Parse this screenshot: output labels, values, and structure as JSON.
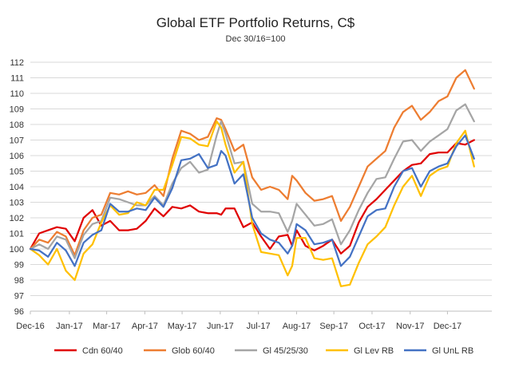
{
  "chart_data": {
    "type": "line",
    "title": "Global ETF Portfolio Returns, C$",
    "subtitle": "Dec 30/16=100",
    "xlabel": "",
    "ylabel": "",
    "ylim": [
      96,
      112
    ],
    "yticks": [
      96,
      97,
      98,
      99,
      100,
      101,
      102,
      103,
      104,
      105,
      106,
      107,
      108,
      109,
      110,
      111,
      112
    ],
    "xlim": [
      0,
      52
    ],
    "xticks": [
      {
        "label": "Dec-16",
        "x": 0
      },
      {
        "label": "Jan-17",
        "x": 4.4
      },
      {
        "label": "Mar-17",
        "x": 8.6
      },
      {
        "label": "Apr-17",
        "x": 12.9
      },
      {
        "label": "May-17",
        "x": 17.1
      },
      {
        "label": "Jun-17",
        "x": 21.4
      },
      {
        "label": "Jul-17",
        "x": 25.7
      },
      {
        "label": "Aug-17",
        "x": 30
      },
      {
        "label": "Sep-17",
        "x": 34.2
      },
      {
        "label": "Oct-17",
        "x": 38.5
      },
      {
        "label": "Nov-17",
        "x": 42.8
      },
      {
        "label": "Dec-17",
        "x": 47
      }
    ],
    "grid": true,
    "legend_position": "bottom",
    "series": [
      {
        "name": "Cdn 60/40",
        "color": "#e00000",
        "x": [
          0,
          1,
          2,
          3,
          4,
          5,
          6,
          7,
          8,
          9,
          10,
          11,
          12,
          13,
          14,
          15,
          16,
          17,
          18,
          19,
          20,
          21,
          21.5,
          22,
          23,
          24,
          25,
          26,
          27,
          28,
          29,
          29.5,
          30,
          31,
          32,
          33,
          34,
          35,
          36,
          37,
          38,
          39,
          40,
          41,
          42,
          43,
          44,
          45,
          46,
          47,
          48,
          49,
          50
        ],
        "values": [
          100,
          101,
          101.2,
          101.4,
          101.3,
          100.5,
          102,
          102.5,
          101.5,
          101.8,
          101.2,
          101.2,
          101.3,
          101.8,
          102.6,
          102.1,
          102.7,
          102.6,
          102.8,
          102.4,
          102.3,
          102.3,
          102.2,
          102.6,
          102.6,
          101.4,
          101.7,
          100.8,
          100,
          100.8,
          100.9,
          100.2,
          101.2,
          100.2,
          99.9,
          100.2,
          100.6,
          99.7,
          100.2,
          101.7,
          102.7,
          103.2,
          103.8,
          104.4,
          105,
          105.4,
          105.5,
          106.1,
          106.2,
          106.2,
          106.8,
          106.7,
          107
        ]
      },
      {
        "name": "Glob 60/40",
        "color": "#ed7d31",
        "x": [
          0,
          1,
          2,
          3,
          4,
          5,
          6,
          7,
          8,
          9,
          10,
          11,
          12,
          13,
          14,
          15,
          16,
          17,
          18,
          19,
          20,
          21,
          21.5,
          22,
          23,
          24,
          25,
          26,
          27,
          28,
          29,
          29.5,
          30,
          31,
          32,
          33,
          34,
          35,
          36,
          37,
          38,
          39,
          40,
          41,
          42,
          43,
          44,
          45,
          46,
          47,
          48,
          49,
          50
        ],
        "values": [
          100,
          100.6,
          100.4,
          101.1,
          100.8,
          99.6,
          101.2,
          102,
          102.2,
          103.6,
          103.5,
          103.7,
          103.5,
          103.6,
          104.1,
          103.4,
          105.8,
          107.6,
          107.4,
          107,
          107.2,
          108.4,
          108.3,
          107.7,
          106.3,
          106.7,
          104.6,
          103.8,
          104,
          103.8,
          103.2,
          104.7,
          104.4,
          103.6,
          103.1,
          103.2,
          103.4,
          101.8,
          102.7,
          104,
          105.3,
          105.8,
          106.3,
          107.8,
          108.8,
          109.2,
          108.3,
          108.8,
          109.5,
          109.8,
          111,
          111.5,
          110.3
        ]
      },
      {
        "name": "Gl 45/25/30",
        "color": "#a5a5a5",
        "x": [
          0,
          1,
          2,
          3,
          4,
          5,
          6,
          7,
          8,
          9,
          10,
          11,
          12,
          13,
          14,
          15,
          16,
          17,
          18,
          19,
          20,
          21,
          21.5,
          22,
          23,
          24,
          25,
          26,
          27,
          28,
          29,
          29.5,
          30,
          31,
          32,
          33,
          34,
          35,
          36,
          37,
          38,
          39,
          40,
          41,
          42,
          43,
          44,
          45,
          46,
          47,
          48,
          49,
          50
        ],
        "values": [
          100,
          100.3,
          100,
          100.8,
          100.6,
          99.4,
          100.9,
          101.6,
          101.8,
          103.3,
          103.2,
          103,
          102.8,
          102.8,
          103.4,
          102.8,
          104.2,
          105.2,
          105.6,
          104.9,
          105.1,
          107.3,
          108.2,
          107.4,
          105.5,
          105.6,
          102.9,
          102.4,
          102.4,
          102.3,
          101.1,
          101.8,
          102.9,
          102.2,
          101.5,
          101.6,
          101.9,
          100.3,
          101.2,
          102.5,
          103.6,
          104.5,
          104.6,
          105.8,
          106.9,
          107,
          106.3,
          106.9,
          107.3,
          107.7,
          108.9,
          109.3,
          108.2
        ]
      },
      {
        "name": "Gl Lev RB",
        "color": "#ffc000",
        "x": [
          0,
          1,
          2,
          3,
          4,
          5,
          6,
          7,
          8,
          9,
          10,
          11,
          12,
          13,
          14,
          15,
          16,
          17,
          18,
          19,
          20,
          21,
          21.5,
          22,
          23,
          24,
          25,
          26,
          27,
          28,
          29,
          29.5,
          30,
          31,
          32,
          33,
          34,
          35,
          36,
          37,
          38,
          39,
          40,
          41,
          42,
          43,
          44,
          45,
          46,
          47,
          48,
          49,
          50
        ],
        "values": [
          100,
          99.6,
          99,
          100,
          98.6,
          98,
          99.7,
          100.3,
          101.7,
          102.8,
          102.2,
          102.3,
          103,
          102.8,
          103.8,
          103.8,
          105.4,
          107.2,
          107.1,
          106.7,
          106.6,
          108.2,
          107.8,
          106.7,
          104.9,
          105.6,
          101.6,
          99.8,
          99.7,
          99.6,
          98.3,
          98.9,
          100.7,
          100.7,
          99.4,
          99.3,
          99.4,
          97.6,
          97.7,
          99.1,
          100.3,
          100.8,
          101.4,
          102.8,
          104,
          104.7,
          103.4,
          104.7,
          105.1,
          105.3,
          106.8,
          107.6,
          105.3
        ]
      },
      {
        "name": "Gl UnL RB",
        "color": "#4472c4",
        "x": [
          0,
          1,
          2,
          3,
          4,
          5,
          6,
          7,
          8,
          9,
          10,
          11,
          12,
          13,
          14,
          15,
          16,
          17,
          18,
          19,
          20,
          21,
          21.5,
          22,
          23,
          24,
          25,
          26,
          27,
          28,
          29,
          29.5,
          30,
          31,
          32,
          33,
          34,
          35,
          36,
          37,
          38,
          39,
          40,
          41,
          42,
          43,
          44,
          45,
          46,
          47,
          48,
          49,
          50
        ],
        "values": [
          100,
          99.9,
          99.5,
          100.4,
          99.9,
          98.9,
          100.4,
          100.9,
          101.2,
          102.9,
          102.4,
          102.4,
          102.6,
          102.5,
          103.3,
          102.7,
          103.9,
          105.7,
          105.8,
          106.1,
          105.2,
          105.4,
          106.3,
          106,
          104.2,
          104.8,
          102,
          101,
          100.6,
          100.4,
          99.7,
          100.2,
          101.6,
          101.2,
          100.3,
          100.4,
          100.6,
          98.9,
          99.5,
          100.8,
          102.1,
          102.5,
          102.6,
          104,
          105,
          105.2,
          104,
          105,
          105.3,
          105.5,
          106.6,
          107.3,
          105.8
        ]
      }
    ]
  }
}
